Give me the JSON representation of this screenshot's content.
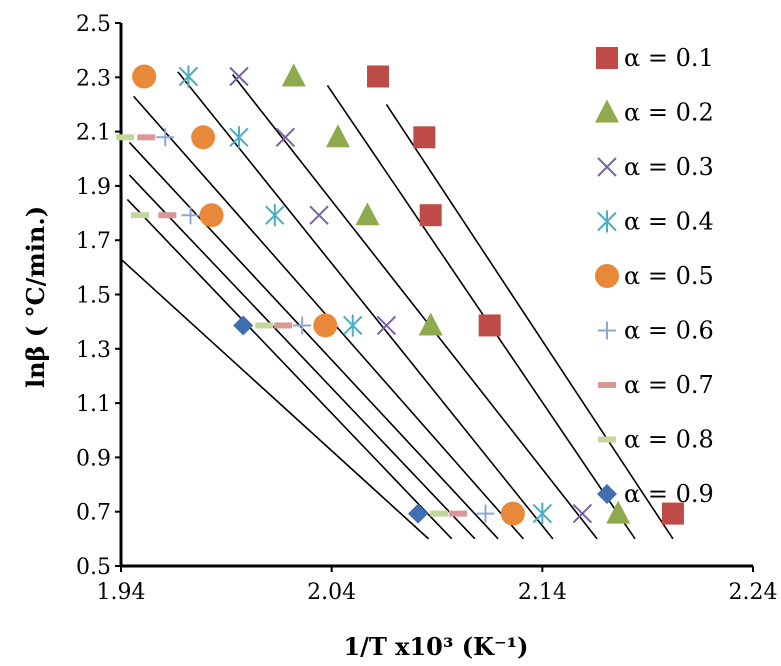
{
  "chart_data": {
    "type": "scatter",
    "title": "",
    "xlabel": "1/T x10³ (K⁻¹)",
    "ylabel": "lnβ ( °C/min.)",
    "xlim": [
      1.94,
      2.24
    ],
    "ylim": [
      0.5,
      2.5
    ],
    "x_ticks": [
      "1.94",
      "2.04",
      "2.14",
      "2.24"
    ],
    "y_ticks": [
      "0.5",
      "0.7",
      "0.9",
      "1.1",
      "1.3",
      "1.5",
      "1.7",
      "1.9",
      "2.1",
      "2.3",
      "2.5"
    ],
    "grid": false,
    "legend_position": "right",
    "series": [
      {
        "name": "α = 0.1",
        "marker": "square",
        "color": "#be4b48",
        "x": [
          2.062,
          2.084,
          2.087,
          2.115,
          2.202
        ],
        "y": [
          2.303,
          2.079,
          1.792,
          1.386,
          0.693
        ]
      },
      {
        "name": "α = 0.2",
        "marker": "triangle",
        "color": "#8faa4d",
        "x": [
          2.022,
          2.043,
          2.057,
          2.087,
          2.176
        ],
        "y": [
          2.303,
          2.079,
          1.792,
          1.386,
          0.693
        ]
      },
      {
        "name": "α = 0.3",
        "marker": "x",
        "color": "#7b62a4",
        "x": [
          1.996,
          2.018,
          2.034,
          2.066,
          2.159
        ],
        "y": [
          2.303,
          2.079,
          1.792,
          1.386,
          0.693
        ]
      },
      {
        "name": "α = 0.4",
        "marker": "asterisk",
        "color": "#4aacc5",
        "x": [
          1.972,
          1.996,
          2.013,
          2.05,
          2.14
        ],
        "y": [
          2.303,
          2.079,
          1.792,
          1.386,
          0.693
        ]
      },
      {
        "name": "α = 0.5",
        "marker": "circle",
        "color": "#e8883b",
        "x": [
          1.951,
          1.979,
          1.983,
          2.037,
          2.126
        ],
        "y": [
          2.303,
          2.079,
          1.792,
          1.386,
          0.693
        ]
      },
      {
        "name": "α = 0.6",
        "marker": "plus",
        "color": "#8ea6d4",
        "x": [
          1.961,
          1.973,
          2.026,
          2.113
        ],
        "y": [
          2.079,
          1.792,
          1.386,
          0.693
        ]
      },
      {
        "name": "α = 0.7",
        "marker": "dash",
        "color": "#d99795",
        "x": [
          1.952,
          1.962,
          2.017,
          2.1
        ],
        "y": [
          2.079,
          1.792,
          1.386,
          0.693
        ]
      },
      {
        "name": "α = 0.8",
        "marker": "dash",
        "color": "#c3d69b",
        "x": [
          1.942,
          1.949,
          2.008,
          2.091
        ],
        "y": [
          2.079,
          1.792,
          1.386,
          0.693
        ]
      },
      {
        "name": "α = 0.9",
        "marker": "diamond",
        "color": "#3f6fb0",
        "x": [
          1.998,
          2.081
        ],
        "y": [
          1.386,
          0.693
        ]
      }
    ],
    "fit_lines": [
      {
        "x": [
          2.066,
          2.202
        ],
        "y": [
          2.2,
          0.6
        ]
      },
      {
        "x": [
          2.038,
          2.184
        ],
        "y": [
          2.27,
          0.6
        ]
      },
      {
        "x": [
          1.993,
          2.166
        ],
        "y": [
          2.31,
          0.6
        ]
      },
      {
        "x": [
          1.967,
          2.145
        ],
        "y": [
          2.32,
          0.6
        ]
      },
      {
        "x": [
          1.946,
          2.131
        ],
        "y": [
          2.23,
          0.6
        ]
      },
      {
        "x": [
          1.944,
          2.119
        ],
        "y": [
          2.06,
          0.6
        ]
      },
      {
        "x": [
          1.944,
          2.108
        ],
        "y": [
          1.94,
          0.6
        ]
      },
      {
        "x": [
          1.943,
          2.097
        ],
        "y": [
          1.85,
          0.6
        ]
      },
      {
        "x": [
          1.94,
          2.086
        ],
        "y": [
          1.63,
          0.6
        ]
      }
    ]
  }
}
